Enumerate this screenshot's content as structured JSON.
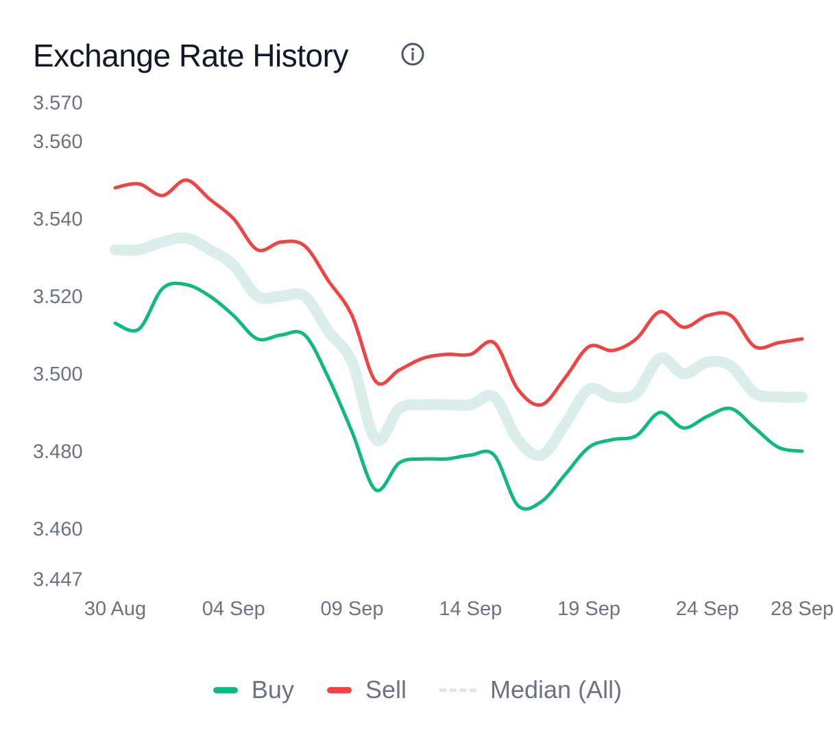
{
  "chart_data": {
    "type": "line",
    "title": "Exchange Rate History",
    "xlabel": "",
    "ylabel": "",
    "ylim": [
      3.447,
      3.57
    ],
    "yticks": [
      "3.570",
      "3.560",
      "3.540",
      "3.520",
      "3.500",
      "3.480",
      "3.460",
      "3.447"
    ],
    "xtick_labels": [
      "30 Aug",
      "04 Sep",
      "09 Sep",
      "14 Sep",
      "19 Sep",
      "24 Sep",
      "28 Sep"
    ],
    "x": [
      "30 Aug",
      "31 Aug",
      "01 Sep",
      "02 Sep",
      "03 Sep",
      "04 Sep",
      "05 Sep",
      "06 Sep",
      "07 Sep",
      "08 Sep",
      "09 Sep",
      "10 Sep",
      "11 Sep",
      "12 Sep",
      "13 Sep",
      "14 Sep",
      "15 Sep",
      "16 Sep",
      "17 Sep",
      "18 Sep",
      "19 Sep",
      "20 Sep",
      "21 Sep",
      "22 Sep",
      "23 Sep",
      "24 Sep",
      "25 Sep",
      "26 Sep",
      "27 Sep",
      "28 Sep"
    ],
    "grid": false,
    "legend_position": "bottom",
    "series": [
      {
        "name": "Buy",
        "color": "#10b981",
        "values": [
          3.513,
          3.5115,
          3.522,
          3.523,
          3.52,
          3.515,
          3.509,
          3.51,
          3.51,
          3.499,
          3.485,
          3.47,
          3.477,
          3.478,
          3.478,
          3.479,
          3.479,
          3.466,
          3.467,
          3.474,
          3.481,
          3.483,
          3.484,
          3.49,
          3.486,
          3.489,
          3.491,
          3.486,
          3.481,
          3.48
        ]
      },
      {
        "name": "Sell",
        "color": "#ef4444",
        "values": [
          3.548,
          3.549,
          3.546,
          3.55,
          3.545,
          3.54,
          3.532,
          3.534,
          3.533,
          3.524,
          3.515,
          3.498,
          3.501,
          3.504,
          3.505,
          3.505,
          3.508,
          3.496,
          3.492,
          3.499,
          3.507,
          3.506,
          3.509,
          3.516,
          3.512,
          3.515,
          3.515,
          3.507,
          3.508,
          3.509
        ]
      },
      {
        "name": "Median (All)",
        "color": "#d9efe9",
        "dashed": true,
        "values": [
          3.532,
          3.532,
          3.534,
          3.535,
          3.532,
          3.528,
          3.52,
          3.52,
          3.52,
          3.511,
          3.503,
          3.483,
          3.491,
          3.492,
          3.492,
          3.492,
          3.494,
          3.483,
          3.479,
          3.487,
          3.496,
          3.494,
          3.495,
          3.504,
          3.5,
          3.503,
          3.502,
          3.495,
          3.494,
          3.494
        ]
      }
    ]
  },
  "info_icon": "info-circle-icon"
}
